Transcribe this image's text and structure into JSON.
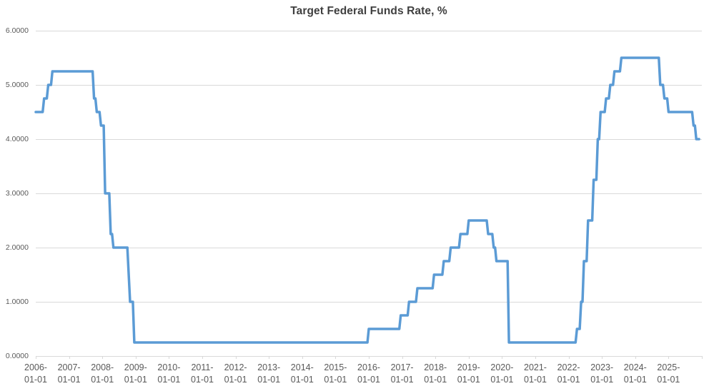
{
  "chart_data": {
    "type": "line",
    "title": "Target Federal Funds Rate, %",
    "grid": "horizontal",
    "legend": "none",
    "colors": {
      "line": "#5B9BD5",
      "gridline": "#D9D9D9",
      "axis_labels": "#595959",
      "title": "#3F3F3F",
      "background": "#FFFFFF"
    },
    "y_axis": {
      "min": 0,
      "max": 6,
      "step": 1,
      "tick_labels": [
        "6.0000",
        "5.0000",
        "4.0000",
        "3.0000",
        "2.0000",
        "1.0000",
        "0.0000"
      ]
    },
    "x_axis": {
      "start_year": 2006,
      "end_year": 2026,
      "tick_labels": [
        "2006-01-01",
        "2007-01-01",
        "2008-01-01",
        "2009-01-01",
        "2010-01-01",
        "2011-01-01",
        "2012-01-01",
        "2013-01-01",
        "2014-01-01",
        "2015-01-01",
        "2016-01-01",
        "2017-01-01",
        "2018-01-01",
        "2019-01-01",
        "2020-01-01",
        "2021-01-01",
        "2022-01-01",
        "2023-01-01",
        "2024-01-01",
        "2025-01-01"
      ]
    },
    "series": [
      {
        "name": "Target Federal Funds Rate",
        "unit": "%",
        "color": "#5B9BD5",
        "initial_point": {
          "date": "2006-01-01",
          "rate": 4.5
        },
        "series_end": {
          "date": "2025-12-01",
          "rate": 4.0
        },
        "rate_changes": [
          {
            "date": "2006-03-28",
            "rate": 4.75
          },
          {
            "date": "2006-05-10",
            "rate": 5.0
          },
          {
            "date": "2006-06-29",
            "rate": 5.25
          },
          {
            "date": "2007-09-18",
            "rate": 4.75
          },
          {
            "date": "2007-10-31",
            "rate": 4.5
          },
          {
            "date": "2007-12-11",
            "rate": 4.25
          },
          {
            "date": "2008-01-22",
            "rate": 3.5
          },
          {
            "date": "2008-01-30",
            "rate": 3.0
          },
          {
            "date": "2008-03-18",
            "rate": 2.25
          },
          {
            "date": "2008-04-30",
            "rate": 2.0
          },
          {
            "date": "2008-10-08",
            "rate": 1.5
          },
          {
            "date": "2008-10-29",
            "rate": 1.0
          },
          {
            "date": "2008-12-16",
            "rate": 0.25
          },
          {
            "date": "2015-12-17",
            "rate": 0.5
          },
          {
            "date": "2016-12-15",
            "rate": 0.75
          },
          {
            "date": "2017-03-16",
            "rate": 1.0
          },
          {
            "date": "2017-06-15",
            "rate": 1.25
          },
          {
            "date": "2017-12-14",
            "rate": 1.5
          },
          {
            "date": "2018-03-22",
            "rate": 1.75
          },
          {
            "date": "2018-06-14",
            "rate": 2.0
          },
          {
            "date": "2018-09-27",
            "rate": 2.25
          },
          {
            "date": "2018-12-20",
            "rate": 2.5
          },
          {
            "date": "2019-08-01",
            "rate": 2.25
          },
          {
            "date": "2019-09-19",
            "rate": 2.0
          },
          {
            "date": "2019-10-31",
            "rate": 1.75
          },
          {
            "date": "2020-03-03",
            "rate": 1.25
          },
          {
            "date": "2020-03-16",
            "rate": 0.25
          },
          {
            "date": "2022-03-17",
            "rate": 0.5
          },
          {
            "date": "2022-05-05",
            "rate": 1.0
          },
          {
            "date": "2022-06-16",
            "rate": 1.75
          },
          {
            "date": "2022-07-28",
            "rate": 2.5
          },
          {
            "date": "2022-09-22",
            "rate": 3.25
          },
          {
            "date": "2022-11-03",
            "rate": 4.0
          },
          {
            "date": "2022-12-15",
            "rate": 4.5
          },
          {
            "date": "2023-02-02",
            "rate": 4.75
          },
          {
            "date": "2023-03-23",
            "rate": 5.0
          },
          {
            "date": "2023-05-04",
            "rate": 5.25
          },
          {
            "date": "2023-07-27",
            "rate": 5.5
          },
          {
            "date": "2024-09-19",
            "rate": 5.0
          },
          {
            "date": "2024-11-08",
            "rate": 4.75
          },
          {
            "date": "2024-12-19",
            "rate": 4.5
          },
          {
            "date": "2025-09-18",
            "rate": 4.25
          },
          {
            "date": "2025-10-30",
            "rate": 4.0
          }
        ]
      }
    ]
  }
}
